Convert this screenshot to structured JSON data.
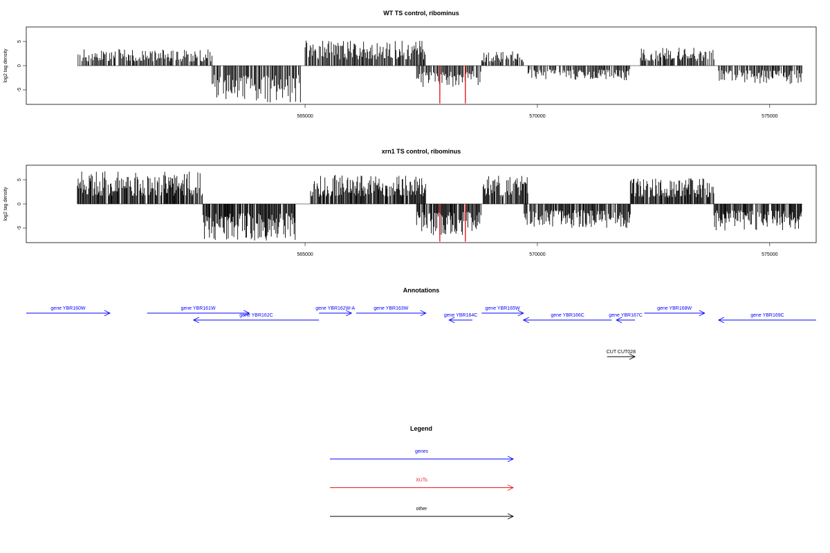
{
  "chart_data": [
    {
      "type": "bar",
      "title": "WT TS control, ribominus",
      "ylabel": "log2 tag density",
      "xlabel": "",
      "xlim": [
        559000,
        576000
      ],
      "ylim": [
        -8,
        8
      ],
      "yticks": [
        -5,
        0,
        5
      ],
      "xticks": [
        565000,
        570000,
        575000
      ],
      "xtick_labels": [
        "565000",
        "570000",
        "575000"
      ],
      "grid": false,
      "plus_strand_regions": [
        {
          "start": 560100,
          "end": 563000,
          "max": 3.5
        },
        {
          "start": 565000,
          "end": 567600,
          "max": 5.2
        },
        {
          "start": 568800,
          "end": 569700,
          "max": 3.0
        },
        {
          "start": 572200,
          "end": 573800,
          "max": 3.8
        }
      ],
      "minus_strand_regions": [
        {
          "start": 563000,
          "end": 564900,
          "min": -7.6
        },
        {
          "start": 567400,
          "end": 568800,
          "min": -4.5
        },
        {
          "start": 569800,
          "end": 572000,
          "min": -3.0
        },
        {
          "start": 573900,
          "end": 575700,
          "min": -3.8
        }
      ],
      "highlight_bars": [
        {
          "x": 567900,
          "value": -7.8,
          "color": "#e41a1c"
        },
        {
          "x": 568450,
          "value": -7.8,
          "color": "#e41a1c"
        }
      ]
    },
    {
      "type": "bar",
      "title": "xrn1 TS control, ribominus",
      "ylabel": "log2 tag density",
      "xlabel": "",
      "xlim": [
        559000,
        576000
      ],
      "ylim": [
        -8,
        8
      ],
      "yticks": [
        -5,
        0,
        5
      ],
      "xticks": [
        565000,
        570000,
        575000
      ],
      "xtick_labels": [
        "565000",
        "570000",
        "575000"
      ],
      "grid": false,
      "plus_strand_regions": [
        {
          "start": 560100,
          "end": 562800,
          "max": 6.8
        },
        {
          "start": 565100,
          "end": 567600,
          "max": 6.0
        },
        {
          "start": 568800,
          "end": 569800,
          "max": 6.0
        },
        {
          "start": 572000,
          "end": 573800,
          "max": 5.3
        }
      ],
      "minus_strand_regions": [
        {
          "start": 562800,
          "end": 564800,
          "min": -7.6
        },
        {
          "start": 567400,
          "end": 568800,
          "min": -6.5
        },
        {
          "start": 569700,
          "end": 572000,
          "min": -5.0
        },
        {
          "start": 573800,
          "end": 575700,
          "min": -5.5
        }
      ],
      "highlight_bars": [
        {
          "x": 567900,
          "value": -7.8,
          "color": "#e41a1c"
        },
        {
          "x": 568450,
          "value": -7.8,
          "color": "#e41a1c"
        }
      ]
    }
  ],
  "annotations": {
    "title": "Annotations",
    "features": [
      {
        "label": "gene YBR160W",
        "start": 559000,
        "end": 560800,
        "strand": "+",
        "row": 0,
        "color": "#0000ff"
      },
      {
        "label": "gene YBR161W",
        "start": 561600,
        "end": 563800,
        "strand": "+",
        "row": 0,
        "color": "#0000ff"
      },
      {
        "label": "gene YBR162C",
        "start": 562600,
        "end": 565300,
        "strand": "-",
        "row": 1,
        "color": "#0000ff"
      },
      {
        "label": "gene YBR162W-A",
        "start": 565300,
        "end": 566000,
        "strand": "+",
        "row": 0,
        "color": "#0000ff"
      },
      {
        "label": "gene YBR163W",
        "start": 566100,
        "end": 567600,
        "strand": "+",
        "row": 0,
        "color": "#0000ff"
      },
      {
        "label": "gene YBR164C",
        "start": 568100,
        "end": 568600,
        "strand": "-",
        "row": 1,
        "color": "#0000ff"
      },
      {
        "label": "gene YBR165W",
        "start": 568800,
        "end": 569700,
        "strand": "+",
        "row": 0,
        "color": "#0000ff"
      },
      {
        "label": "gene YBR166C",
        "start": 569700,
        "end": 571600,
        "strand": "-",
        "row": 1,
        "color": "#0000ff"
      },
      {
        "label": "gene YBR167C",
        "start": 571700,
        "end": 572100,
        "strand": "-",
        "row": 1,
        "color": "#0000ff"
      },
      {
        "label": "gene YBR168W",
        "start": 572300,
        "end": 573600,
        "strand": "+",
        "row": 0,
        "color": "#0000ff"
      },
      {
        "label": "gene YBR169C",
        "start": 573900,
        "end": 576000,
        "strand": "-",
        "row": 1,
        "color": "#0000ff"
      },
      {
        "label": "CUT CUT028",
        "start": 571500,
        "end": 572100,
        "strand": "+",
        "row": 2,
        "color": "#000000"
      }
    ]
  },
  "legend": {
    "title": "Legend",
    "items": [
      {
        "label": "genes",
        "color": "#0000ff"
      },
      {
        "label": "XUTs",
        "color": "#e41a1c"
      },
      {
        "label": "other",
        "color": "#000000"
      }
    ]
  }
}
